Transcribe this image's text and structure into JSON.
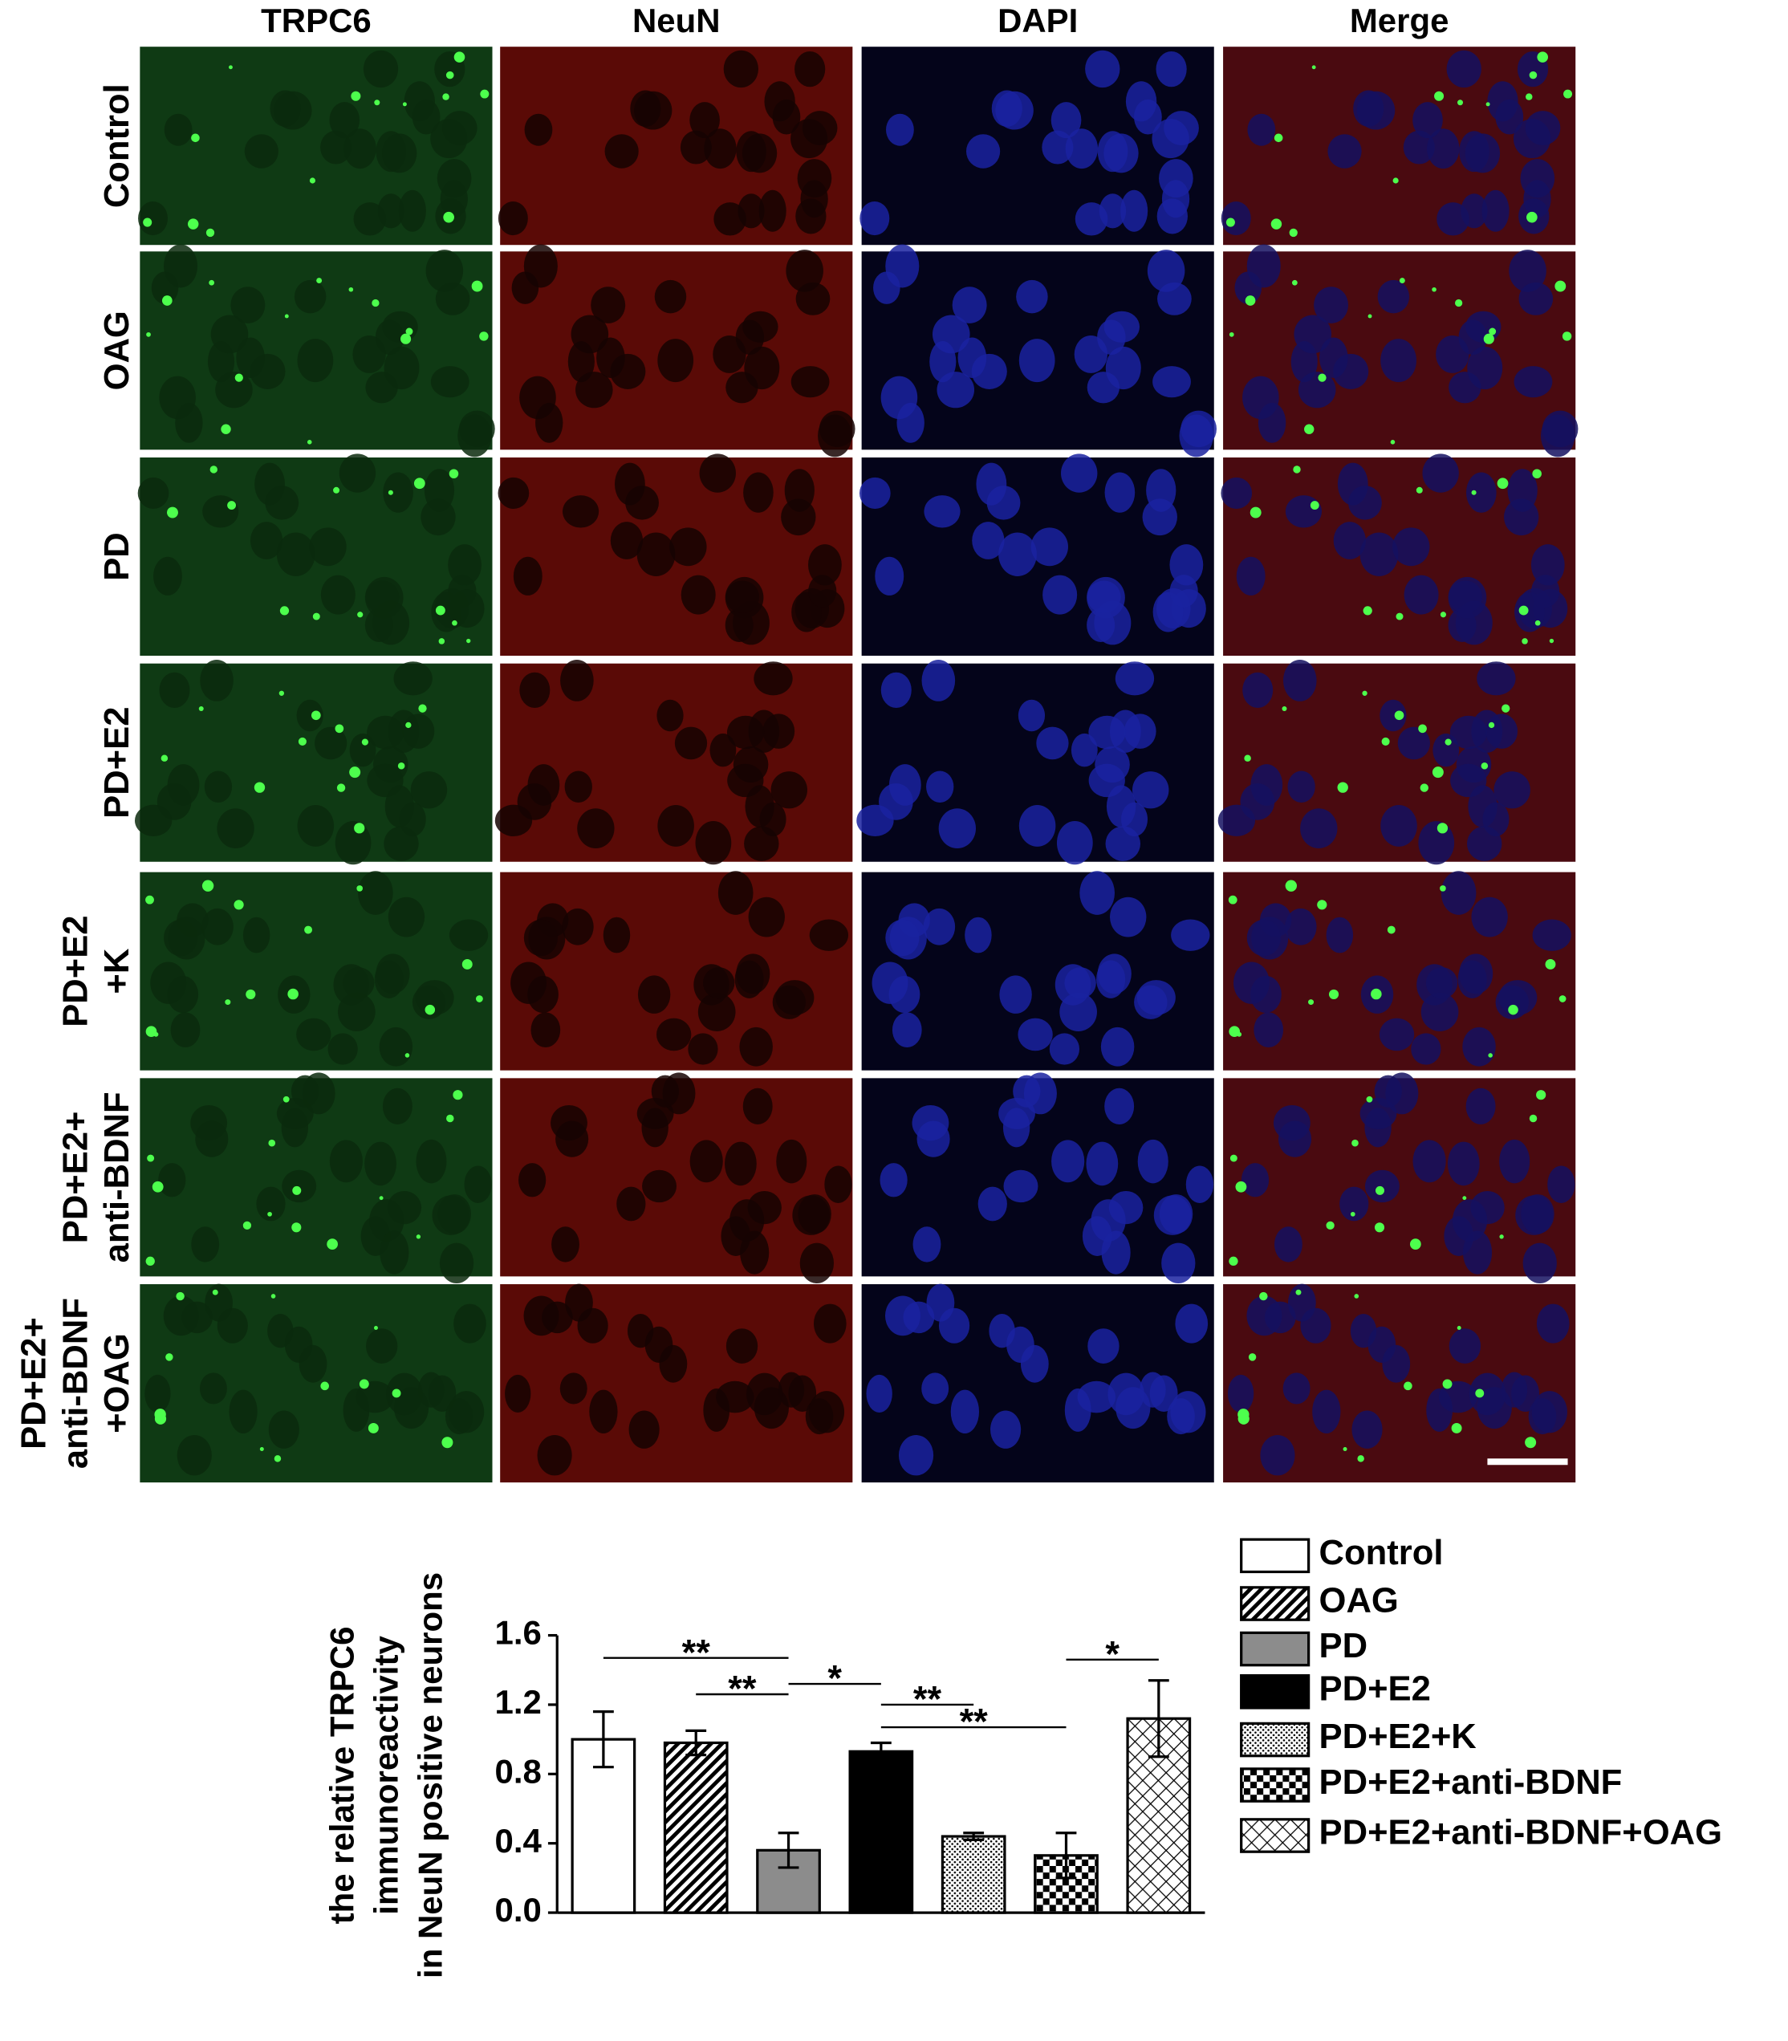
{
  "figure": {
    "columns": [
      "TRPC6",
      "NeuN",
      "DAPI",
      "Merge"
    ],
    "rows": [
      [
        "Control"
      ],
      [
        "OAG"
      ],
      [
        "PD"
      ],
      [
        "PD+E2"
      ],
      [
        "PD+E2",
        "+K"
      ],
      [
        "PD+E2+",
        "anti-BDNF"
      ],
      [
        "PD+E2+",
        "anti-BDNF",
        "+OAG"
      ]
    ]
  },
  "chart_data": {
    "type": "bar",
    "y_label": [
      "the relative TRPC6",
      "immunoreactivity",
      "in NeuN positive neurons"
    ],
    "categories": [
      "Control",
      "OAG",
      "PD",
      "PD+E2",
      "PD+E2+K",
      "PD+E2+anti-BDNF",
      "PD+E2+anti-BDNF+OAG"
    ],
    "values": [
      1.0,
      0.98,
      0.36,
      0.93,
      0.44,
      0.33,
      1.12
    ],
    "errors": [
      0.16,
      0.07,
      0.1,
      0.05,
      0.02,
      0.13,
      0.22
    ],
    "patterns": [
      "white",
      "hatch",
      "gray",
      "black",
      "dots",
      "checker",
      "crosshatch"
    ],
    "ylim": [
      0,
      1.6
    ],
    "yticks": [
      {
        "value": 0,
        "label": "0.0"
      },
      0.4,
      0.8,
      1.2,
      1.6
    ],
    "significance": [
      {
        "from": 0,
        "to": 2,
        "level": 1.47,
        "label": "**"
      },
      {
        "from": 1,
        "to": 2,
        "level": 1.26,
        "label": "**"
      },
      {
        "from": 2,
        "to": 3,
        "level": 1.32,
        "label": "*"
      },
      {
        "from": 3,
        "to": 4,
        "level": 1.2,
        "label": "**"
      },
      {
        "from": 3,
        "to": 5,
        "level": 1.07,
        "label": "**"
      },
      {
        "from": 5,
        "to": 6,
        "level": 1.46,
        "label": "*"
      }
    ]
  }
}
